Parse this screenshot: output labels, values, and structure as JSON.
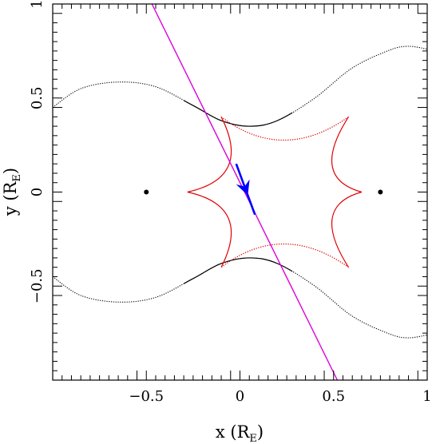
{
  "chart_data": {
    "type": "line",
    "xlabel": {
      "main": "x (R",
      "sub": "E",
      "close": ")"
    },
    "ylabel": {
      "main": "y (R",
      "sub": "E",
      "close": ")"
    },
    "xlim": [
      -1,
      1
    ],
    "ylim": [
      -1,
      1
    ],
    "x_ticks": [
      {
        "value": -0.5,
        "label": "−0.5"
      },
      {
        "value": 0,
        "label": "0"
      },
      {
        "value": 0.5,
        "label": "0.5"
      },
      {
        "value": 1,
        "label": "1"
      }
    ],
    "y_ticks": [
      {
        "value": -0.5,
        "label": "−0.5"
      },
      {
        "value": 0,
        "label": "0"
      },
      {
        "value": 0.5,
        "label": "0.5"
      },
      {
        "value": 1,
        "label": "1"
      }
    ],
    "grid": false,
    "colors": {
      "caustic": "#e00000",
      "critical_curve": "#000000",
      "trajectory": "#dd00dd",
      "direction_arrow": "#0000ff",
      "lens_points": "#000000"
    },
    "lens_points": [
      {
        "x": -0.5,
        "y": 0
      },
      {
        "x": 0.75,
        "y": 0
      }
    ],
    "trajectory_line": {
      "x1": -0.47,
      "y1": 1.0,
      "x2": 0.52,
      "y2": -1.0
    },
    "direction_arrow": {
      "x1": -0.02,
      "y1": 0.15,
      "x2": 0.08,
      "y2": -0.12
    },
    "caustic_cusps": [
      {
        "x": -0.28,
        "y": 0
      },
      {
        "x": -0.1,
        "y": 0.4
      },
      {
        "x": 0.58,
        "y": 0.4
      },
      {
        "x": 0.65,
        "y": 0
      },
      {
        "x": 0.58,
        "y": -0.4
      },
      {
        "x": -0.1,
        "y": -0.4
      }
    ],
    "critical_curve_upper": [
      {
        "x": -1.0,
        "y": 0.45
      },
      {
        "x": -0.85,
        "y": 0.55
      },
      {
        "x": -0.65,
        "y": 0.585
      },
      {
        "x": -0.45,
        "y": 0.56
      },
      {
        "x": -0.25,
        "y": 0.46
      },
      {
        "x": -0.1,
        "y": 0.38
      },
      {
        "x": 0.05,
        "y": 0.35
      },
      {
        "x": 0.2,
        "y": 0.38
      },
      {
        "x": 0.4,
        "y": 0.5
      },
      {
        "x": 0.6,
        "y": 0.66
      },
      {
        "x": 0.8,
        "y": 0.755
      },
      {
        "x": 0.9,
        "y": 0.775
      },
      {
        "x": 1.0,
        "y": 0.76
      }
    ],
    "critical_curve_lower": [
      {
        "x": -1.0,
        "y": -0.45
      },
      {
        "x": -0.85,
        "y": -0.55
      },
      {
        "x": -0.65,
        "y": -0.585
      },
      {
        "x": -0.45,
        "y": -0.56
      },
      {
        "x": -0.25,
        "y": -0.46
      },
      {
        "x": -0.1,
        "y": -0.38
      },
      {
        "x": 0.05,
        "y": -0.35
      },
      {
        "x": 0.2,
        "y": -0.38
      },
      {
        "x": 0.4,
        "y": -0.5
      },
      {
        "x": 0.6,
        "y": -0.66
      },
      {
        "x": 0.8,
        "y": -0.755
      },
      {
        "x": 0.9,
        "y": -0.775
      },
      {
        "x": 1.0,
        "y": -0.76
      }
    ]
  }
}
